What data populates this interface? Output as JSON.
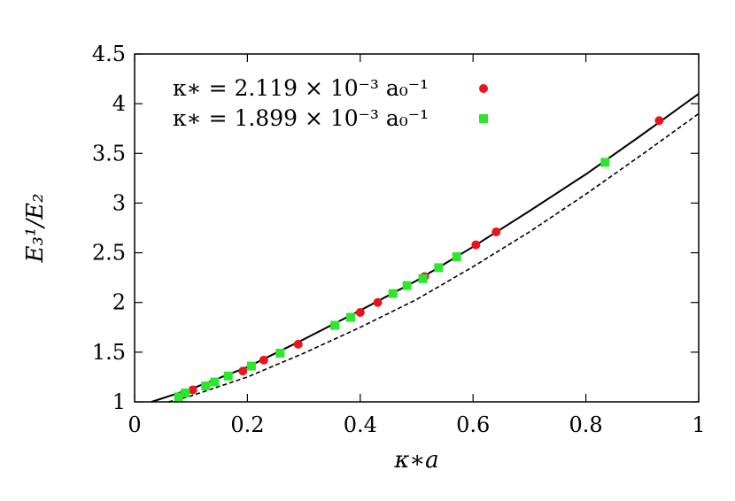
{
  "chart_data": {
    "type": "scatter",
    "xlabel": "κ∗a",
    "ylabel": "E₃¹/E₂",
    "xlim": [
      0,
      1
    ],
    "ylim": [
      1,
      4.5
    ],
    "x_ticks": [
      "0",
      "0.2",
      "0.4",
      "0.6",
      "0.8",
      "1"
    ],
    "y_ticks": [
      "1",
      "1.5",
      "2",
      "2.5",
      "3",
      "3.5",
      "4",
      "4.5"
    ],
    "grid": false,
    "legend_position": "top-left",
    "series": [
      {
        "name": "κ∗ = 2.119 × 10⁻³ a₀⁻¹",
        "marker": "circle",
        "color": "#e8161b",
        "points": [
          [
            0.103,
            1.12
          ],
          [
            0.192,
            1.31
          ],
          [
            0.229,
            1.42
          ],
          [
            0.29,
            1.58
          ],
          [
            0.4,
            1.9
          ],
          [
            0.431,
            2.0
          ],
          [
            0.514,
            2.26
          ],
          [
            0.605,
            2.58
          ],
          [
            0.641,
            2.71
          ],
          [
            0.93,
            3.83
          ]
        ]
      },
      {
        "name": "κ∗ = 1.899 × 10⁻³ a₀⁻¹",
        "marker": "square",
        "color": "#2ee62e",
        "points": [
          [
            0.078,
            1.05
          ],
          [
            0.09,
            1.09
          ],
          [
            0.126,
            1.16
          ],
          [
            0.142,
            1.2
          ],
          [
            0.166,
            1.26
          ],
          [
            0.207,
            1.36
          ],
          [
            0.258,
            1.49
          ],
          [
            0.355,
            1.77
          ],
          [
            0.383,
            1.85
          ],
          [
            0.458,
            2.09
          ],
          [
            0.483,
            2.17
          ],
          [
            0.511,
            2.24
          ],
          [
            0.539,
            2.35
          ],
          [
            0.571,
            2.46
          ],
          [
            0.834,
            3.41
          ]
        ]
      },
      {
        "marker": "line",
        "style": "solid",
        "color": "#000000",
        "points": [
          [
            0.03,
            1.0
          ],
          [
            0.1,
            1.13
          ],
          [
            0.2,
            1.35
          ],
          [
            0.3,
            1.63
          ],
          [
            0.4,
            1.92
          ],
          [
            0.5,
            2.22
          ],
          [
            0.6,
            2.56
          ],
          [
            0.7,
            2.92
          ],
          [
            0.8,
            3.29
          ],
          [
            0.9,
            3.69
          ],
          [
            1.0,
            4.1
          ]
        ]
      },
      {
        "marker": "line",
        "style": "dashed",
        "color": "#000000",
        "points": [
          [
            0.06,
            1.0
          ],
          [
            0.1,
            1.06
          ],
          [
            0.2,
            1.25
          ],
          [
            0.3,
            1.49
          ],
          [
            0.4,
            1.75
          ],
          [
            0.5,
            2.03
          ],
          [
            0.6,
            2.36
          ],
          [
            0.7,
            2.71
          ],
          [
            0.8,
            3.09
          ],
          [
            0.9,
            3.49
          ],
          [
            1.0,
            3.9
          ]
        ]
      }
    ]
  }
}
